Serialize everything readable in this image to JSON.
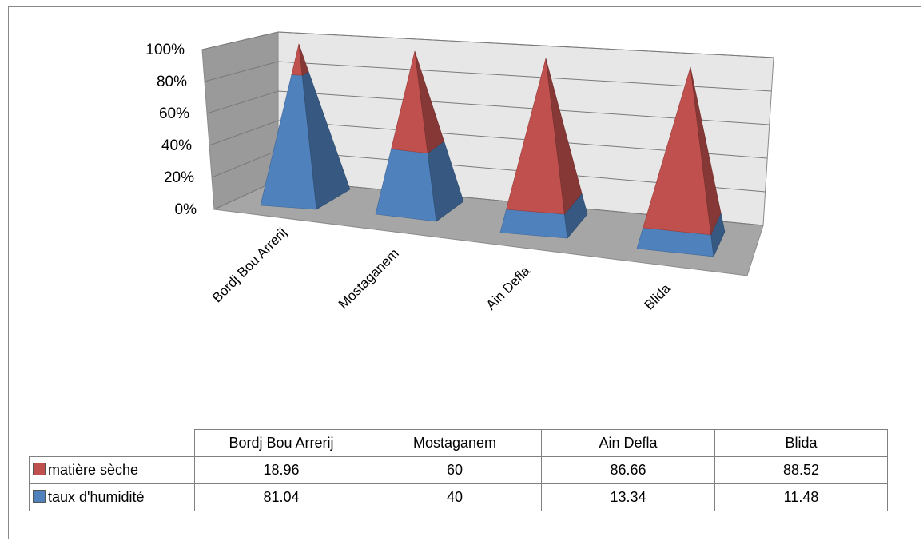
{
  "chart_data": {
    "type": "bar",
    "subtype": "3d-stacked-pyramid-100-percent",
    "categories": [
      "Bordj Bou Arrerij",
      "Mostaganem",
      "Ain Defla",
      "Blida"
    ],
    "series": [
      {
        "name": "taux d'humidité",
        "values": [
          81.04,
          40,
          13.34,
          11.48
        ],
        "color": "#4F81BD"
      },
      {
        "name": "matière sèche",
        "values": [
          18.96,
          60,
          86.66,
          88.52
        ],
        "color": "#C0504D"
      }
    ],
    "y_ticks": [
      "0%",
      "20%",
      "40%",
      "60%",
      "80%",
      "100%"
    ],
    "ylim": [
      0,
      100
    ],
    "grid": true,
    "legend": "data-table-below"
  },
  "table": {
    "columns": [
      "Bordj Bou Arrerij",
      "Mostaganem",
      "Ain Defla",
      "Blida"
    ],
    "rows": [
      {
        "label": "matière sèche",
        "color": "#C0504D",
        "values": [
          "18.96",
          "60",
          "86.66",
          "88.52"
        ]
      },
      {
        "label": "taux d'humidité",
        "color": "#4F81BD",
        "values": [
          "81.04",
          "40",
          "13.34",
          "11.48"
        ]
      }
    ]
  }
}
